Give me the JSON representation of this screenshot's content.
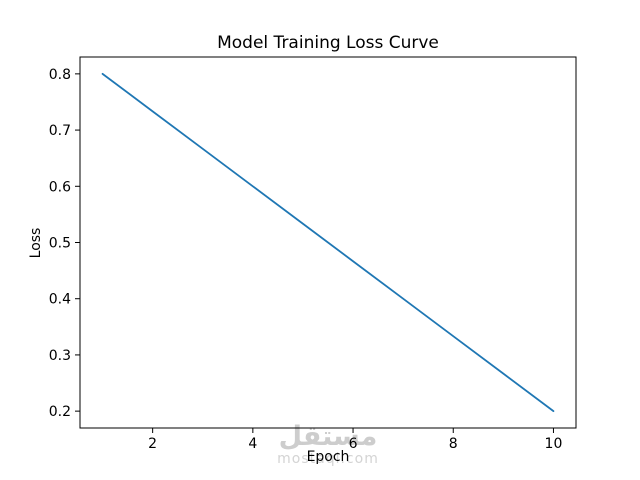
{
  "chart_data": {
    "type": "line",
    "title": "Model Training Loss Curve",
    "xlabel": "Epoch",
    "ylabel": "Loss",
    "x": [
      1,
      2,
      3,
      4,
      5,
      6,
      7,
      8,
      9,
      10
    ],
    "y": [
      0.8,
      0.7333,
      0.6667,
      0.6,
      0.5333,
      0.4667,
      0.4,
      0.3333,
      0.2667,
      0.2
    ],
    "line_color": "#1f77b4",
    "xlim": [
      0.55,
      10.45
    ],
    "ylim": [
      0.17,
      0.83
    ],
    "xticks": [
      2,
      4,
      6,
      8,
      10
    ],
    "xtick_labels": [
      "2",
      "4",
      "6",
      "8",
      "10"
    ],
    "yticks": [
      0.2,
      0.3,
      0.4,
      0.5,
      0.6,
      0.7,
      0.8
    ],
    "ytick_labels": [
      "0.2",
      "0.3",
      "0.4",
      "0.5",
      "0.6",
      "0.7",
      "0.8"
    ],
    "grid": false,
    "legend_position": "none"
  },
  "watermark": {
    "arabic_text": "مستقل",
    "latin_text": "mostaql.com",
    "arabic_color": "#cdcdcd",
    "latin_color": "#d4d4d4"
  }
}
